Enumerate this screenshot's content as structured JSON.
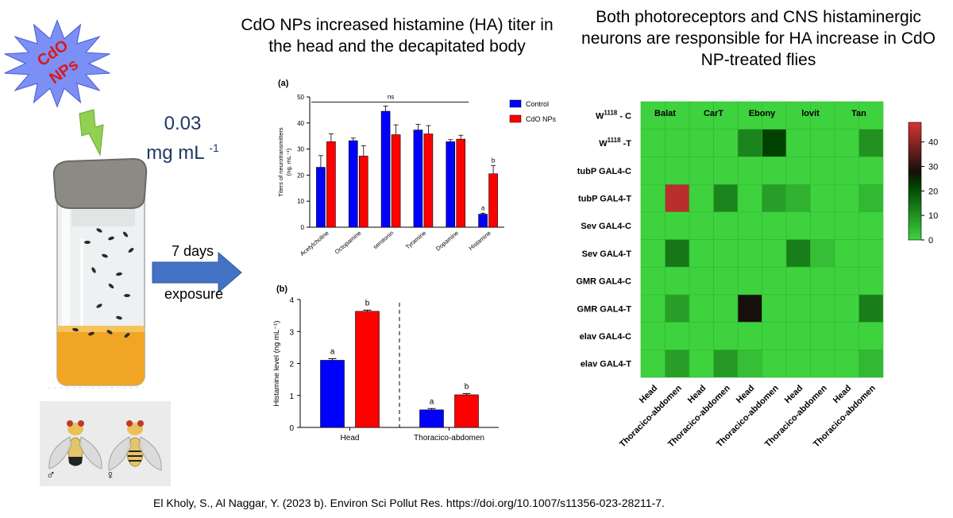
{
  "left_panel": {
    "badge_text_line1": "CdO",
    "badge_text_line2": "NPs",
    "dose_line1": "0.03",
    "dose_line2": "mg mL",
    "dose_sup": "-1",
    "arrow_top_label": "7 days",
    "arrow_bottom_label": "exposure",
    "male_symbol": "♂",
    "female_symbol": "♀",
    "colors": {
      "badge_fill": "#7b8ff5",
      "badge_text": "#d81b1b",
      "arrow": "#4472c4",
      "lightning": "#92d050",
      "vial_food": "#f0a524"
    }
  },
  "middle_panel": {
    "title": "CdO NPs increased histamine (HA) titer in the head and the decapitated body"
  },
  "right_panel": {
    "title": "Both photoreceptors and CNS histaminergic neurons are responsible for HA increase in CdO NP-treated flies"
  },
  "citation": "El Kholy, S., Al Naggar, Y. (2023 b). Environ Sci Pollut Res. https://doi.org/10.1007/s11356-023-28211-7.",
  "chart_data": [
    {
      "type": "bar",
      "panel_label": "(a)",
      "categories": [
        "Acetylcholine",
        "Octopamine",
        "serotonin",
        "Tyramine",
        "Dopamine",
        "Histamine"
      ],
      "series": [
        {
          "name": "Control",
          "color": "#0000ff",
          "values": [
            23.0,
            33.2,
            44.5,
            37.3,
            32.8,
            5.0
          ],
          "errors": [
            4.5,
            1.0,
            2.0,
            2.2,
            0.8,
            0.4
          ]
        },
        {
          "name": "CdO NPs",
          "color": "#ff0000",
          "values": [
            32.8,
            27.3,
            35.5,
            35.8,
            33.8,
            20.5
          ],
          "errors": [
            3.0,
            4.0,
            3.8,
            3.2,
            1.5,
            3.2
          ]
        }
      ],
      "ylabel_line1": "Titers of neurotransmitters",
      "ylabel_line2": "(ng. mL⁻¹)",
      "ylim": [
        0,
        50
      ],
      "yticks": [
        "0",
        "10",
        "20",
        "30",
        "40",
        "50"
      ],
      "annotations": {
        "ns": "ns",
        "histamine_control": "a",
        "histamine_cdo": "b"
      },
      "legend_position": "top-right"
    },
    {
      "type": "bar",
      "panel_label": "(b)",
      "categories": [
        "Head",
        "Thoracico-abdomen"
      ],
      "series": [
        {
          "name": "Control",
          "color": "#0000ff",
          "values": [
            2.1,
            0.55
          ],
          "errors": [
            0.05,
            0.04
          ],
          "letters": [
            "a",
            "a"
          ]
        },
        {
          "name": "CdO NPs",
          "color": "#ff0000",
          "values": [
            3.63,
            1.02
          ],
          "errors": [
            0.04,
            0.04
          ],
          "letters": [
            "b",
            "b"
          ]
        }
      ],
      "ylabel": "Histamine level (ng mL⁻¹)",
      "ylim": [
        0,
        4
      ],
      "yticks": [
        "0",
        "1",
        "2",
        "3",
        "4"
      ]
    },
    {
      "type": "heatmap",
      "column_groups": [
        "Balat",
        "CarT",
        "Ebony",
        "lovit",
        "Tan"
      ],
      "x": [
        "Head",
        "Thoracico-abdomen",
        "Head",
        "Thoracico-abdomen",
        "Head",
        "Thoracico-abdomen",
        "Head",
        "Thoracico-abdomen",
        "Head",
        "Thoracico-abdomen"
      ],
      "y": [
        "W1118 - C",
        "W1118 -T",
        "tubP GAL4-C",
        "tubP GAL4-T",
        "Sev GAL4-C",
        "Sev GAL4-T",
        "GMR GAL4-C",
        "GMR GAL4-T",
        "elav GAL4-C",
        "elav GAL4-T"
      ],
      "values": [
        [
          0,
          0,
          0,
          0,
          0,
          0,
          0,
          0,
          0,
          0
        ],
        [
          0,
          0,
          0,
          0,
          12,
          22,
          0,
          0,
          0,
          10
        ],
        [
          0,
          0,
          0,
          0,
          0,
          0,
          0,
          0,
          0,
          0
        ],
        [
          0,
          45,
          0,
          12,
          0,
          8,
          5,
          0,
          0,
          4
        ],
        [
          0,
          0,
          0,
          0,
          0,
          0,
          0,
          0,
          0,
          0
        ],
        [
          0,
          14,
          0,
          0,
          0,
          0,
          13,
          3,
          0,
          0
        ],
        [
          0,
          0,
          0,
          0,
          0,
          0,
          0,
          0,
          0,
          0
        ],
        [
          0,
          8,
          0,
          0,
          28,
          0,
          0,
          0,
          0,
          13
        ],
        [
          0,
          0,
          0,
          0,
          0,
          0,
          0,
          0,
          0,
          0
        ],
        [
          0,
          8,
          0,
          9,
          3,
          0,
          0,
          0,
          0,
          4
        ]
      ],
      "colorbar_ticks": [
        "0",
        "10",
        "20",
        "30",
        "40"
      ],
      "colorbar_range": [
        0,
        48
      ]
    }
  ]
}
